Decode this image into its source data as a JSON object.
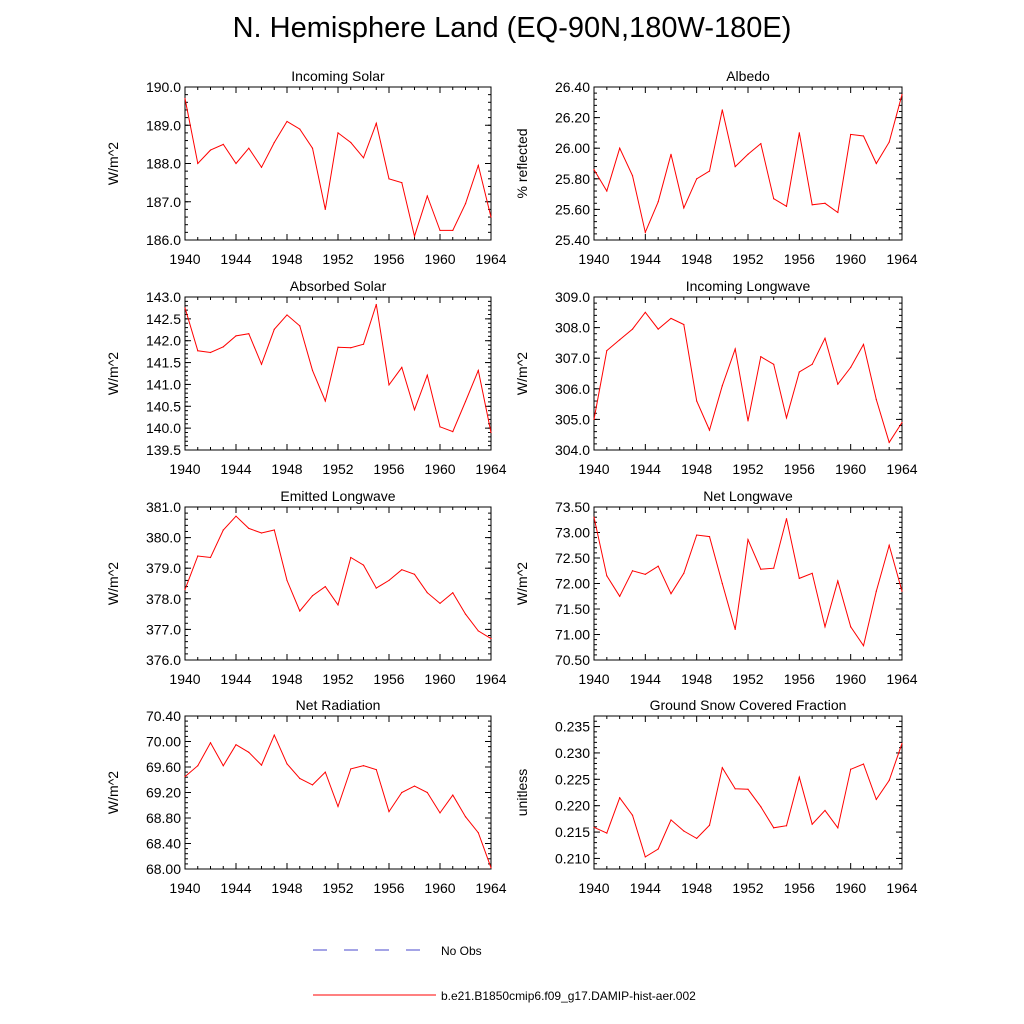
{
  "title": "N. Hemisphere Land (EQ-90N,180W-180E)",
  "colors": {
    "series": "#ff0000",
    "obs": "#4a4acc",
    "axis": "#000000"
  },
  "legend": [
    {
      "name": "No Obs",
      "style": "dashed",
      "color": "#4a4acc"
    },
    {
      "name": "b.e21.B1850cmip6.f09_g17.DAMIP-hist-aer.002",
      "style": "solid",
      "color": "#ff0000"
    }
  ],
  "chart_data": [
    {
      "type": "line",
      "title": "Incoming Solar",
      "ylabel": "W/m^2",
      "xlim": [
        1940,
        1964
      ],
      "ylim": [
        186.0,
        190.0
      ],
      "xticks": [
        1940,
        1944,
        1948,
        1952,
        1956,
        1960,
        1964
      ],
      "yticks": [
        "186.0",
        "187.0",
        "188.0",
        "189.0",
        "190.0"
      ],
      "series": [
        {
          "color": "#ff0000",
          "x": [
            1940,
            1941,
            1942,
            1943,
            1944,
            1945,
            1946,
            1947,
            1948,
            1949,
            1950,
            1951,
            1952,
            1953,
            1954,
            1955,
            1956,
            1957,
            1958,
            1959,
            1960,
            1961,
            1962,
            1963,
            1964
          ],
          "values": [
            189.7,
            188.0,
            188.35,
            188.5,
            188.0,
            188.4,
            187.9,
            188.55,
            189.1,
            188.9,
            188.4,
            186.8,
            188.8,
            188.55,
            188.15,
            189.05,
            187.6,
            187.5,
            186.1,
            187.15,
            186.25,
            186.25,
            186.95,
            187.95,
            186.6
          ]
        }
      ]
    },
    {
      "type": "line",
      "title": "Albedo",
      "ylabel": "% reflected",
      "xlim": [
        1940,
        1964
      ],
      "ylim": [
        25.4,
        26.4
      ],
      "xticks": [
        1940,
        1944,
        1948,
        1952,
        1956,
        1960,
        1964
      ],
      "yticks": [
        "25.40",
        "25.60",
        "25.80",
        "26.00",
        "26.20",
        "26.40"
      ],
      "series": [
        {
          "color": "#ff0000",
          "x": [
            1940,
            1941,
            1942,
            1943,
            1944,
            1945,
            1946,
            1947,
            1948,
            1949,
            1950,
            1951,
            1952,
            1953,
            1954,
            1955,
            1956,
            1957,
            1958,
            1959,
            1960,
            1961,
            1962,
            1963,
            1964
          ],
          "values": [
            25.86,
            25.72,
            26.0,
            25.82,
            25.45,
            25.65,
            25.96,
            25.61,
            25.8,
            25.85,
            26.25,
            25.88,
            25.96,
            26.03,
            25.67,
            25.62,
            26.1,
            25.63,
            25.64,
            25.58,
            26.09,
            26.08,
            25.9,
            26.04,
            26.35
          ]
        }
      ]
    },
    {
      "type": "line",
      "title": "Absorbed Solar",
      "ylabel": "W/m^2",
      "xlim": [
        1940,
        1964
      ],
      "ylim": [
        139.5,
        143.0
      ],
      "xticks": [
        1940,
        1944,
        1948,
        1952,
        1956,
        1960,
        1964
      ],
      "yticks": [
        "139.5",
        "140.0",
        "140.5",
        "141.0",
        "141.5",
        "142.0",
        "142.5",
        "143.0"
      ],
      "series": [
        {
          "color": "#ff0000",
          "x": [
            1940,
            1941,
            1942,
            1943,
            1944,
            1945,
            1946,
            1947,
            1948,
            1949,
            1950,
            1951,
            1952,
            1953,
            1954,
            1955,
            1956,
            1957,
            1958,
            1959,
            1960,
            1961,
            1962,
            1963,
            1964
          ],
          "values": [
            142.75,
            141.77,
            141.73,
            141.86,
            142.11,
            142.16,
            141.46,
            142.26,
            142.59,
            142.34,
            141.32,
            140.62,
            141.85,
            141.84,
            141.92,
            142.83,
            140.99,
            141.39,
            140.42,
            141.21,
            140.03,
            139.92,
            140.61,
            141.32,
            139.9
          ]
        }
      ]
    },
    {
      "type": "line",
      "title": "Incoming Longwave",
      "ylabel": "W/m^2",
      "xlim": [
        1940,
        1964
      ],
      "ylim": [
        304.0,
        309.0
      ],
      "xticks": [
        1940,
        1944,
        1948,
        1952,
        1956,
        1960,
        1964
      ],
      "yticks": [
        "304.0",
        "305.0",
        "306.0",
        "307.0",
        "308.0",
        "309.0"
      ],
      "series": [
        {
          "color": "#ff0000",
          "x": [
            1940,
            1941,
            1942,
            1943,
            1944,
            1945,
            1946,
            1947,
            1948,
            1949,
            1950,
            1951,
            1952,
            1953,
            1954,
            1955,
            1956,
            1957,
            1958,
            1959,
            1960,
            1961,
            1962,
            1963,
            1964
          ],
          "values": [
            305.0,
            307.25,
            307.6,
            307.95,
            308.5,
            307.95,
            308.3,
            308.1,
            305.6,
            304.65,
            306.1,
            307.3,
            304.95,
            307.05,
            306.8,
            305.05,
            306.55,
            306.8,
            307.65,
            306.15,
            306.7,
            307.45,
            305.65,
            304.25,
            304.9
          ]
        }
      ]
    },
    {
      "type": "line",
      "title": "Emitted Longwave",
      "ylabel": "W/m^2",
      "xlim": [
        1940,
        1964
      ],
      "ylim": [
        376.0,
        381.0
      ],
      "xticks": [
        1940,
        1944,
        1948,
        1952,
        1956,
        1960,
        1964
      ],
      "yticks": [
        "376.0",
        "377.0",
        "378.0",
        "379.0",
        "380.0",
        "381.0"
      ],
      "series": [
        {
          "color": "#ff0000",
          "x": [
            1940,
            1941,
            1942,
            1943,
            1944,
            1945,
            1946,
            1947,
            1948,
            1949,
            1950,
            1951,
            1952,
            1953,
            1954,
            1955,
            1956,
            1957,
            1958,
            1959,
            1960,
            1961,
            1962,
            1963,
            1964
          ],
          "values": [
            378.3,
            379.4,
            379.35,
            380.25,
            380.7,
            380.3,
            380.15,
            380.25,
            378.6,
            377.6,
            378.1,
            378.4,
            377.8,
            379.35,
            379.1,
            378.35,
            378.6,
            378.95,
            378.8,
            378.2,
            377.85,
            378.2,
            377.5,
            376.95,
            376.7
          ]
        }
      ]
    },
    {
      "type": "line",
      "title": "Net Longwave",
      "ylabel": "W/m^2",
      "xlim": [
        1940,
        1964
      ],
      "ylim": [
        70.5,
        73.5
      ],
      "xticks": [
        1940,
        1944,
        1948,
        1952,
        1956,
        1960,
        1964
      ],
      "yticks": [
        "70.50",
        "71.00",
        "71.50",
        "72.00",
        "72.50",
        "73.00",
        "73.50"
      ],
      "series": [
        {
          "color": "#ff0000",
          "x": [
            1940,
            1941,
            1942,
            1943,
            1944,
            1945,
            1946,
            1947,
            1948,
            1949,
            1950,
            1951,
            1952,
            1953,
            1954,
            1955,
            1956,
            1957,
            1958,
            1959,
            1960,
            1961,
            1962,
            1963,
            1964
          ],
          "values": [
            73.3,
            72.15,
            71.75,
            72.25,
            72.18,
            72.34,
            71.8,
            72.2,
            72.95,
            72.92,
            72.0,
            71.1,
            72.86,
            72.28,
            72.3,
            73.27,
            72.1,
            72.2,
            71.15,
            72.05,
            71.15,
            70.78,
            71.85,
            72.75,
            71.85
          ]
        }
      ]
    },
    {
      "type": "line",
      "title": "Net Radiation",
      "ylabel": "W/m^2",
      "xlim": [
        1940,
        1964
      ],
      "ylim": [
        68.0,
        70.4
      ],
      "xticks": [
        1940,
        1944,
        1948,
        1952,
        1956,
        1960,
        1964
      ],
      "yticks": [
        "68.00",
        "68.40",
        "68.80",
        "69.20",
        "69.60",
        "70.00",
        "70.40"
      ],
      "series": [
        {
          "color": "#ff0000",
          "x": [
            1940,
            1941,
            1942,
            1943,
            1944,
            1945,
            1946,
            1947,
            1948,
            1949,
            1950,
            1951,
            1952,
            1953,
            1954,
            1955,
            1956,
            1957,
            1958,
            1959,
            1960,
            1961,
            1962,
            1963,
            1964
          ],
          "values": [
            69.45,
            69.62,
            69.98,
            69.62,
            69.95,
            69.83,
            69.63,
            70.1,
            69.65,
            69.42,
            69.32,
            69.52,
            68.98,
            69.57,
            69.62,
            69.56,
            68.9,
            69.2,
            69.3,
            69.2,
            68.88,
            69.16,
            68.82,
            68.57,
            68.02
          ]
        }
      ]
    },
    {
      "type": "line",
      "title": "Ground Snow Covered Fraction",
      "ylabel": "unitless",
      "xlim": [
        1940,
        1964
      ],
      "ylim": [
        0.208,
        0.237
      ],
      "xticks": [
        1940,
        1944,
        1948,
        1952,
        1956,
        1960,
        1964
      ],
      "yticks": [
        "0.210",
        "0.215",
        "0.220",
        "0.225",
        "0.230",
        "0.235"
      ],
      "series": [
        {
          "color": "#ff0000",
          "x": [
            1940,
            1941,
            1942,
            1943,
            1944,
            1945,
            1946,
            1947,
            1948,
            1949,
            1950,
            1951,
            1952,
            1953,
            1954,
            1955,
            1956,
            1957,
            1958,
            1959,
            1960,
            1961,
            1962,
            1963,
            1964
          ],
          "values": [
            0.2159,
            0.2148,
            0.2215,
            0.2182,
            0.2103,
            0.2118,
            0.2173,
            0.2152,
            0.2138,
            0.2163,
            0.2272,
            0.2232,
            0.2231,
            0.2198,
            0.2158,
            0.2162,
            0.2254,
            0.2165,
            0.2191,
            0.2158,
            0.2269,
            0.2279,
            0.2212,
            0.2248,
            0.2318
          ]
        }
      ]
    }
  ]
}
